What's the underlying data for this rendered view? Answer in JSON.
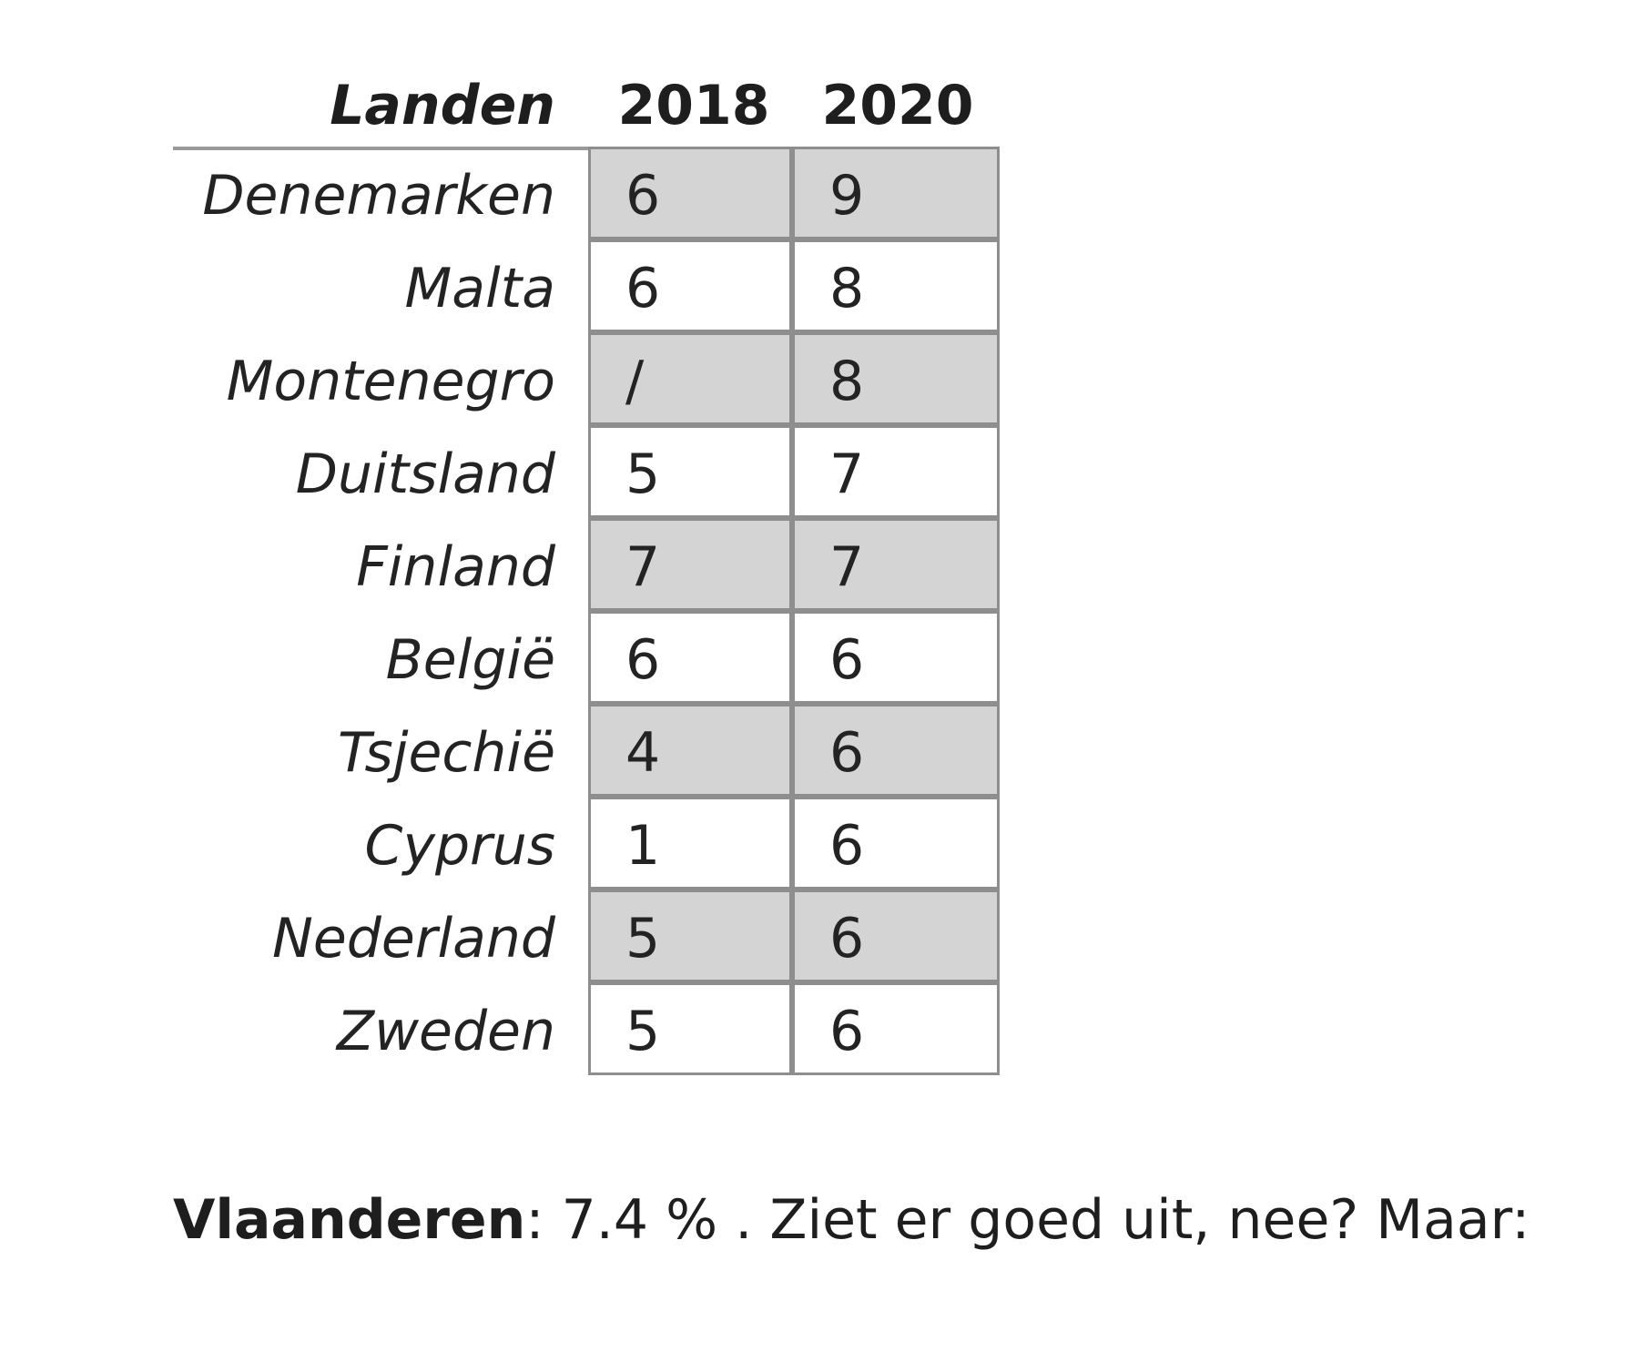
{
  "header": {
    "country_label": "Landen",
    "year_1": "2018",
    "year_2": "2020"
  },
  "rows": [
    {
      "country": "Denemarken",
      "v2018": "6",
      "v2020": "9",
      "shaded": true
    },
    {
      "country": "Malta",
      "v2018": "6",
      "v2020": "8",
      "shaded": false
    },
    {
      "country": "Montenegro",
      "v2018": "/",
      "v2020": "8",
      "shaded": true
    },
    {
      "country": "Duitsland",
      "v2018": "5",
      "v2020": "7",
      "shaded": false
    },
    {
      "country": "Finland",
      "v2018": "7",
      "v2020": "7",
      "shaded": true
    },
    {
      "country": "België",
      "v2018": "6",
      "v2020": "6",
      "shaded": false
    },
    {
      "country": "Tsjechië",
      "v2018": "4",
      "v2020": "6",
      "shaded": true
    },
    {
      "country": "Cyprus",
      "v2018": "1",
      "v2020": "6",
      "shaded": false
    },
    {
      "country": "Nederland",
      "v2018": "5",
      "v2020": "6",
      "shaded": true
    },
    {
      "country": "Zweden",
      "v2018": "5",
      "v2020": "6",
      "shaded": false
    }
  ],
  "footer": {
    "label": "Vlaanderen",
    "text": ": 7.4 % . Ziet er goed uit, nee? Maar:"
  },
  "colors": {
    "shaded_row": "#d4d4d4",
    "border": "#8e8e8e"
  }
}
